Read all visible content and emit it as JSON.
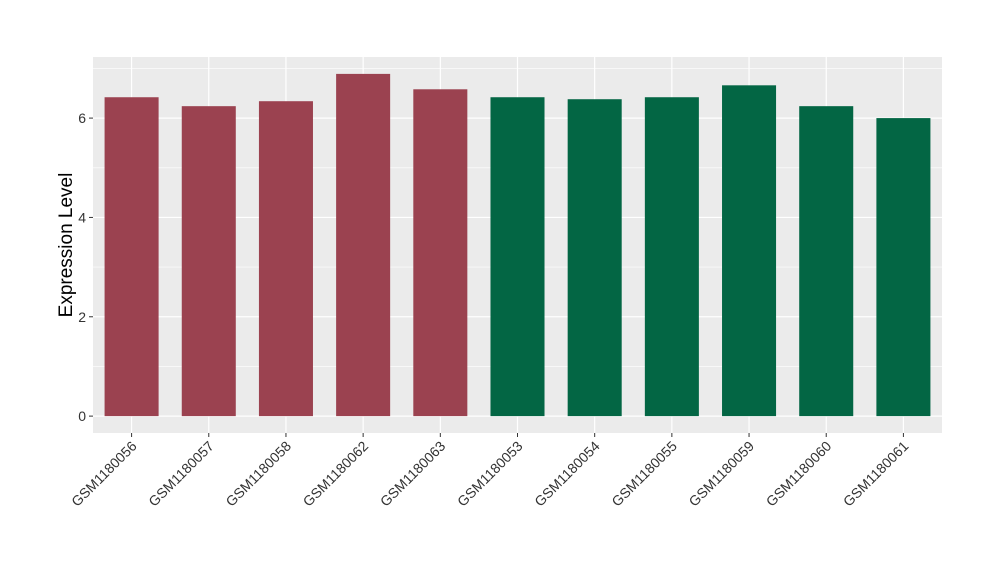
{
  "chart_data": {
    "type": "bar",
    "title": "",
    "xlabel": "",
    "ylabel": "Expression Level",
    "categories": [
      "GSM1180056",
      "GSM1180057",
      "GSM1180058",
      "GSM1180062",
      "GSM1180063",
      "GSM1180053",
      "GSM1180054",
      "GSM1180055",
      "GSM1180059",
      "GSM1180060",
      "GSM1180061"
    ],
    "values": [
      6.42,
      6.24,
      6.34,
      6.89,
      6.58,
      6.42,
      6.38,
      6.42,
      6.66,
      6.24,
      6.0
    ],
    "bar_colors": [
      "#9b4250",
      "#9b4250",
      "#9b4250",
      "#9b4250",
      "#9b4250",
      "#036644",
      "#036644",
      "#036644",
      "#036644",
      "#036644",
      "#036644"
    ],
    "ylim": [
      -0.34,
      7.23
    ],
    "yticks": [
      0,
      2,
      4,
      6
    ],
    "grid": true,
    "panel_background": "#ebebeb"
  }
}
